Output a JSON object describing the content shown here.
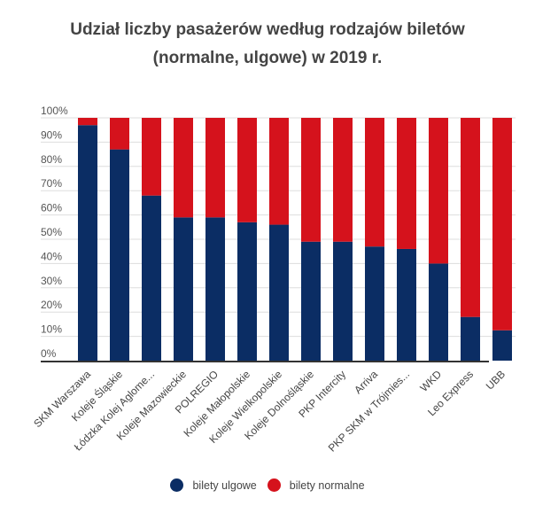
{
  "chart_data": {
    "type": "bar",
    "stacked": true,
    "title_line1": "Udział liczby pasażerów według rodzajów biletów",
    "title_line2": "(normalne, ulgowe) w 2019 r.",
    "xlabel": "",
    "ylabel": "",
    "ylim": [
      0,
      100
    ],
    "yticks": [
      "0%",
      "10%",
      "20%",
      "30%",
      "40%",
      "50%",
      "60%",
      "70%",
      "80%",
      "90%",
      "100%"
    ],
    "grid": true,
    "legend_position": "bottom",
    "categories": [
      "SKM Warszawa",
      "Koleje Śląskie",
      "Łódzka Kolej Aglome...",
      "Koleje Mazowieckie",
      "POLREGIO",
      "Koleje Małopolskie",
      "Koleje Wielkopolskie",
      "Koleje Dolnośląskie",
      "PKP Intercity",
      "Arriva",
      "PKP SKM w Trójmies...",
      "WKD",
      "Leo Express",
      "UBB"
    ],
    "series": [
      {
        "name": "bilety ulgowe",
        "color": "#0b2d64",
        "values": [
          97,
          87,
          68,
          59,
          59,
          57,
          56,
          49,
          49,
          47,
          46,
          40,
          18,
          12.5
        ]
      },
      {
        "name": "bilety normalne",
        "color": "#d5121c",
        "values": [
          3,
          13,
          32,
          41,
          41,
          43,
          44,
          51,
          51,
          53,
          54,
          60,
          82,
          87.5
        ]
      }
    ]
  }
}
